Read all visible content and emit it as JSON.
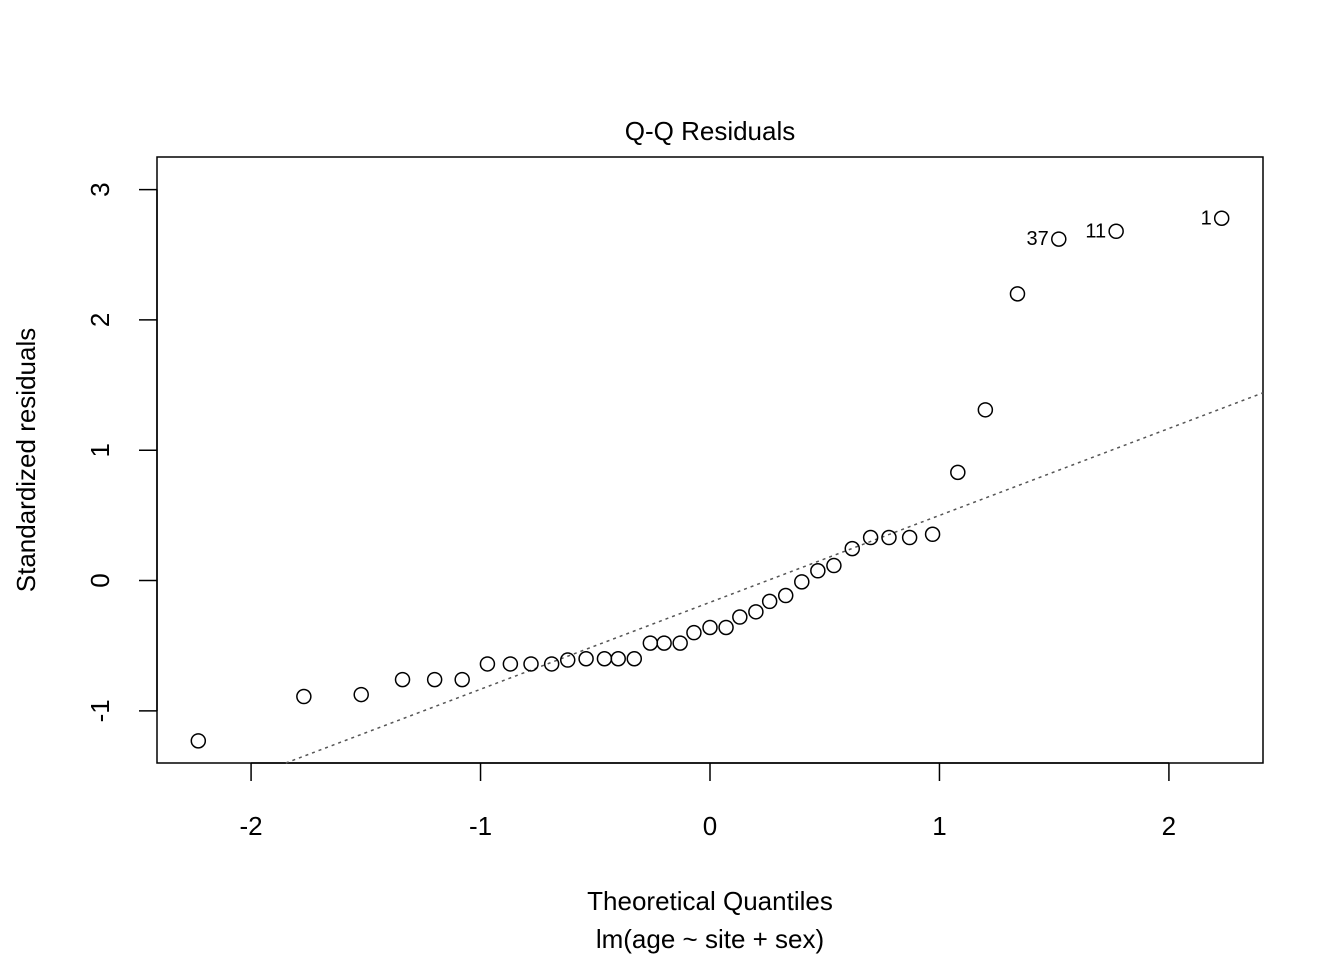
{
  "chart_data": {
    "type": "scatter",
    "title": "Q-Q Residuals",
    "xlabel": "Theoretical Quantiles",
    "subtitle": "lm(age ~ site + sex)",
    "ylabel": "Standardized residuals",
    "xlim": [
      -2.41,
      2.41
    ],
    "ylim": [
      -1.4,
      3.25
    ],
    "xticks": [
      -2,
      -1,
      0,
      1,
      2
    ],
    "xtick_labels": [
      "-2",
      "-1",
      "0",
      "1",
      "2"
    ],
    "yticks": [
      -1,
      0,
      1,
      2,
      3
    ],
    "ytick_labels": [
      "-1",
      "0",
      "1",
      "2",
      "3"
    ],
    "grid": false,
    "points": [
      {
        "x": -2.23,
        "y": -1.23
      },
      {
        "x": -1.77,
        "y": -0.89
      },
      {
        "x": -1.52,
        "y": -0.875
      },
      {
        "x": -1.34,
        "y": -0.76
      },
      {
        "x": -1.2,
        "y": -0.76
      },
      {
        "x": -1.08,
        "y": -0.76
      },
      {
        "x": -0.97,
        "y": -0.64
      },
      {
        "x": -0.87,
        "y": -0.64
      },
      {
        "x": -0.78,
        "y": -0.64
      },
      {
        "x": -0.69,
        "y": -0.64
      },
      {
        "x": -0.62,
        "y": -0.61
      },
      {
        "x": -0.54,
        "y": -0.6
      },
      {
        "x": -0.46,
        "y": -0.6
      },
      {
        "x": -0.4,
        "y": -0.6
      },
      {
        "x": -0.33,
        "y": -0.6
      },
      {
        "x": -0.26,
        "y": -0.48
      },
      {
        "x": -0.2,
        "y": -0.48
      },
      {
        "x": -0.13,
        "y": -0.48
      },
      {
        "x": -0.07,
        "y": -0.4
      },
      {
        "x": 0.0,
        "y": -0.36
      },
      {
        "x": 0.07,
        "y": -0.36
      },
      {
        "x": 0.13,
        "y": -0.28
      },
      {
        "x": 0.2,
        "y": -0.24
      },
      {
        "x": 0.26,
        "y": -0.16
      },
      {
        "x": 0.33,
        "y": -0.115
      },
      {
        "x": 0.4,
        "y": -0.01
      },
      {
        "x": 0.47,
        "y": 0.075
      },
      {
        "x": 0.54,
        "y": 0.115
      },
      {
        "x": 0.62,
        "y": 0.245
      },
      {
        "x": 0.7,
        "y": 0.33
      },
      {
        "x": 0.78,
        "y": 0.33
      },
      {
        "x": 0.87,
        "y": 0.33
      },
      {
        "x": 0.97,
        "y": 0.355
      },
      {
        "x": 1.08,
        "y": 0.83
      },
      {
        "x": 1.2,
        "y": 1.31
      },
      {
        "x": 1.34,
        "y": 2.2
      },
      {
        "x": 1.52,
        "y": 2.62,
        "label": "37"
      },
      {
        "x": 1.77,
        "y": 2.68,
        "label": "11"
      },
      {
        "x": 2.23,
        "y": 2.78,
        "label": "1"
      }
    ],
    "reference_line": {
      "intercept": -0.167,
      "slope": 0.667,
      "style": "dotted",
      "color": "#555555"
    }
  }
}
